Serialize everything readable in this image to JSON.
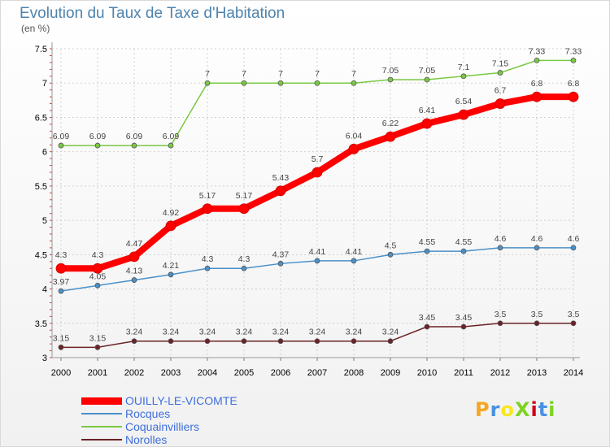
{
  "title": "Evolution du Taux de Taxe d'Habitation",
  "unit_label": "(en %)",
  "logo_text": "ProXiti",
  "chart_data": {
    "type": "line",
    "title": "Evolution du Taux de Taxe d'Habitation",
    "ylabel": "(en %)",
    "x": [
      "2000",
      "2001",
      "2002",
      "2003",
      "2004",
      "2005",
      "2006",
      "2007",
      "2008",
      "2009",
      "2010",
      "2011",
      "2012",
      "2013",
      "2014"
    ],
    "ylim": [
      3,
      7.5
    ],
    "yticks": [
      "3",
      "3.5",
      "4",
      "4.5",
      "5",
      "5.5",
      "6",
      "6.5",
      "7",
      "7.5"
    ],
    "legend_position": "bottom-left",
    "series": [
      {
        "name": "OUILLY-LE-VICOMTE",
        "color": "#ff0000",
        "values": [
          4.3,
          4.3,
          4.47,
          4.92,
          5.17,
          5.17,
          5.43,
          5.7,
          6.04,
          6.22,
          6.41,
          6.54,
          6.7,
          6.8,
          6.8
        ],
        "labels": [
          "4.3",
          "4.3",
          "4.47",
          "4.92",
          "5.17",
          "5.17",
          "5.43",
          "5.7",
          "6.04",
          "6.22",
          "6.41",
          "6.54",
          "6.7",
          "6.8",
          "6.8"
        ]
      },
      {
        "name": "Rocques",
        "color": "#4a90c8",
        "values": [
          3.97,
          4.05,
          4.13,
          4.21,
          4.3,
          4.3,
          4.37,
          4.41,
          4.41,
          4.5,
          4.55,
          4.55,
          4.6,
          4.6,
          4.6
        ],
        "labels": [
          "3.97",
          "4.05",
          "4.13",
          "4.21",
          "4.3",
          "4.3",
          "4.37",
          "4.41",
          "4.41",
          "4.5",
          "4.55",
          "4.55",
          "4.6",
          "4.6",
          "4.6"
        ]
      },
      {
        "name": "Coquainvilliers",
        "color": "#7ac943",
        "values": [
          6.09,
          6.09,
          6.09,
          6.09,
          7,
          7,
          7,
          7,
          7,
          7.05,
          7.05,
          7.1,
          7.15,
          7.33,
          7.33
        ],
        "labels": [
          "6.09",
          "6.09",
          "6.09",
          "6.09",
          "7",
          "7",
          "7",
          "7",
          "7",
          "7.05",
          "7.05",
          "7.1",
          "7.15",
          "7.33",
          "7.33"
        ]
      },
      {
        "name": "Norolles",
        "color": "#6b2226",
        "values": [
          3.15,
          3.15,
          3.24,
          3.24,
          3.24,
          3.24,
          3.24,
          3.24,
          3.24,
          3.24,
          3.45,
          3.45,
          3.5,
          3.5,
          3.5
        ],
        "labels": [
          "3.15",
          "3.15",
          "3.24",
          "3.24",
          "3.24",
          "3.24",
          "3.24",
          "3.24",
          "3.24",
          "3.24",
          "3.45",
          "3.45",
          "3.5",
          "3.5",
          "3.5"
        ]
      }
    ]
  }
}
